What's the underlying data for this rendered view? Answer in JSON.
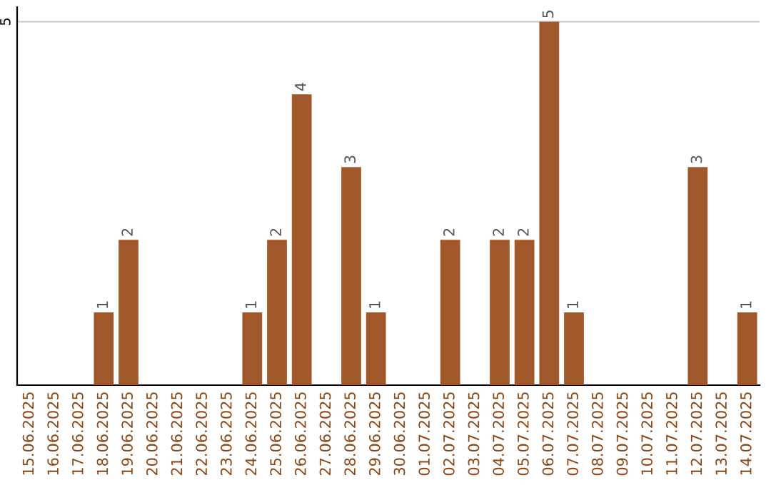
{
  "chart_data": {
    "type": "bar",
    "categories": [
      "15.06.2025",
      "16.06.2025",
      "17.06.2025",
      "18.06.2025",
      "19.06.2025",
      "20.06.2025",
      "21.06.2025",
      "22.06.2025",
      "23.06.2025",
      "24.06.2025",
      "25.06.2025",
      "26.06.2025",
      "27.06.2025",
      "28.06.2025",
      "29.06.2025",
      "30.06.2025",
      "01.07.2025",
      "02.07.2025",
      "03.07.2025",
      "04.07.2025",
      "05.07.2025",
      "06.07.2025",
      "07.07.2025",
      "08.07.2025",
      "09.07.2025",
      "10.07.2025",
      "11.07.2025",
      "12.07.2025",
      "13.07.2025",
      "14.07.2025"
    ],
    "values": [
      0,
      0,
      0,
      1,
      2,
      0,
      0,
      0,
      0,
      1,
      2,
      4,
      0,
      3,
      1,
      0,
      0,
      2,
      0,
      2,
      2,
      5,
      1,
      0,
      0,
      0,
      0,
      3,
      0,
      1
    ],
    "value_labels": [
      null,
      null,
      null,
      "1",
      "2",
      null,
      null,
      null,
      null,
      "1",
      "2",
      "4",
      null,
      "3",
      "1",
      null,
      null,
      "2",
      null,
      "2",
      "2",
      "5",
      "1",
      null,
      null,
      null,
      null,
      "3",
      null,
      "1"
    ],
    "color": "#a0572a",
    "ylim": [
      0,
      5.2
    ],
    "yticks": [
      5
    ],
    "grid": "y"
  }
}
